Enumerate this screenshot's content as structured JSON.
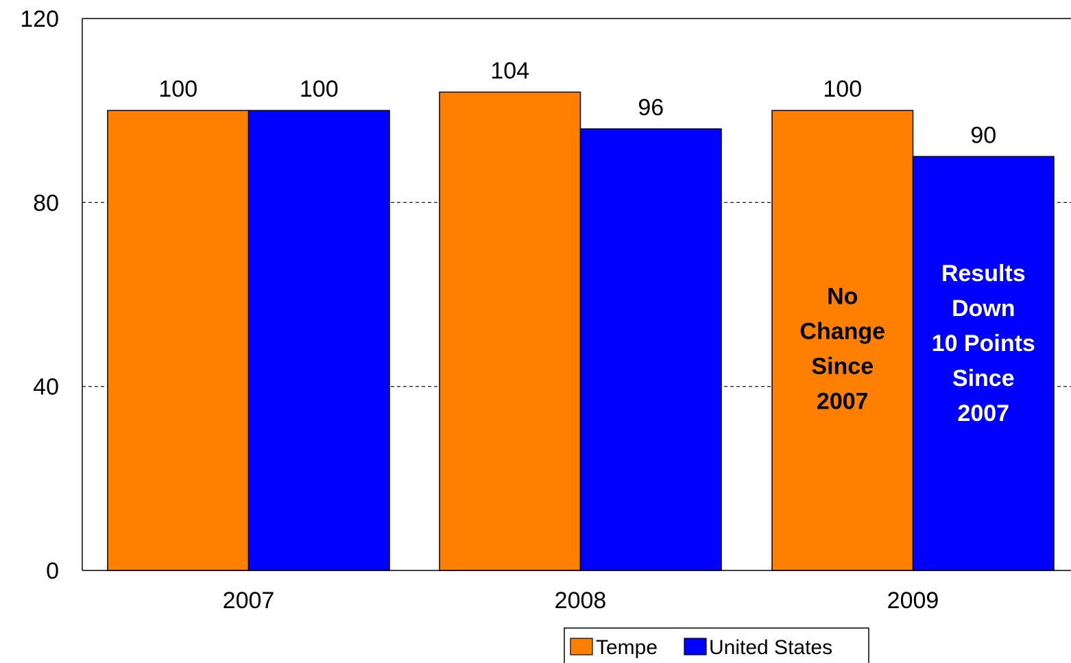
{
  "chart_data": {
    "type": "bar",
    "categories": [
      "2007",
      "2008",
      "2009"
    ],
    "series": [
      {
        "name": "Tempe",
        "values": [
          100,
          104,
          100
        ],
        "color": "#FF8000"
      },
      {
        "name": "United States",
        "values": [
          100,
          96,
          90
        ],
        "color": "#0000FF"
      }
    ],
    "ylim": [
      0,
      120
    ],
    "yticks": [
      0,
      40,
      80,
      120
    ],
    "grid": true,
    "legend": "bottom",
    "annotations": [
      {
        "series": "Tempe",
        "category": "2009",
        "lines": [
          "No",
          "Change",
          "Since",
          "2007"
        ],
        "color": "#000000"
      },
      {
        "series": "United States",
        "category": "2009",
        "lines": [
          "Results",
          "Down",
          "10 Points",
          "Since",
          "2007"
        ],
        "color": "#FFFFFF"
      }
    ]
  }
}
